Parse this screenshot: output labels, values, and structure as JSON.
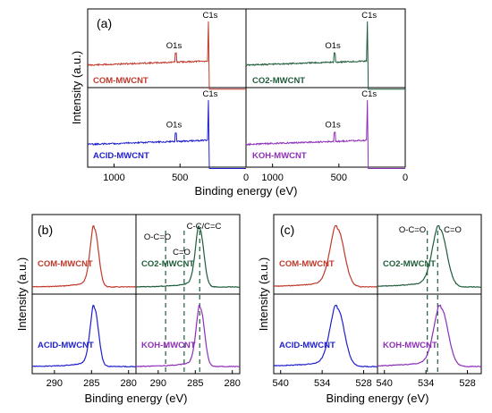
{
  "colors": {
    "COM": "#c0392b",
    "CO2": "#1f5c3a",
    "ACID": "#1f1fcf",
    "KOH": "#8e2fb8"
  },
  "chart_data": [
    {
      "type": "line",
      "panel_label": "(a)",
      "xlabel": "Binding energy (eV)",
      "ylabel": "Intensity (a.u.)",
      "xlim_left": [
        1200,
        0
      ],
      "xlim_right": [
        1200,
        0
      ],
      "x_ticks_left": [
        "1000",
        "500",
        "0"
      ],
      "x_ticks_right": [
        "1000",
        "500",
        "0"
      ],
      "peaks": {
        "O1s": 532,
        "C1s": 285
      },
      "series": [
        {
          "name": "COM-MWCNT",
          "color": "COM",
          "row": "top",
          "col": "left",
          "peak_labels": [
            "O1s",
            "C1s"
          ]
        },
        {
          "name": "CO2-MWCNT",
          "color": "CO2",
          "row": "top",
          "col": "right",
          "peak_labels": [
            "O1s",
            "C1s"
          ]
        },
        {
          "name": "ACID-MWCNT",
          "color": "ACID",
          "row": "bottom",
          "col": "left",
          "peak_labels": [
            "O1s",
            "C1s"
          ]
        },
        {
          "name": "KOH-MWCNT",
          "color": "KOH",
          "row": "bottom",
          "col": "right",
          "peak_labels": [
            "O1s",
            "C1s"
          ]
        }
      ]
    },
    {
      "type": "line",
      "panel_label": "(b)",
      "xlabel": "Binding energy (eV)",
      "ylabel": "Intensity (a.u.)",
      "xlim": [
        293,
        279
      ],
      "x_ticks": [
        "290",
        "285",
        "280"
      ],
      "reference_lines": [
        289,
        286.5,
        284.4
      ],
      "annotations": [
        "O-C=O",
        "C=O",
        "C-C/C=C"
      ],
      "series": [
        {
          "name": "COM-MWCNT",
          "color": "COM",
          "peak": 284.6
        },
        {
          "name": "CO2-MWCNT",
          "color": "CO2",
          "peak": 284.4
        },
        {
          "name": "ACID-MWCNT",
          "color": "ACID",
          "peak": 284.6
        },
        {
          "name": "KOH-MWCNT",
          "color": "KOH",
          "peak": 284.3
        }
      ]
    },
    {
      "type": "line",
      "panel_label": "(c)",
      "xlabel": "Binding energy (eV)",
      "ylabel": "Intensity (a.u.)",
      "xlim": [
        541,
        526
      ],
      "x_ticks": [
        "540",
        "534",
        "528"
      ],
      "reference_lines": [
        533.8,
        532.3
      ],
      "annotations": [
        "O-C=O",
        "C=O"
      ],
      "series": [
        {
          "name": "COM-MWCNT",
          "color": "COM",
          "peak": 531.8
        },
        {
          "name": "CO2-MWCNT",
          "color": "CO2",
          "peak": 532.0
        },
        {
          "name": "ACID-MWCNT",
          "color": "ACID",
          "peak": 531.8
        },
        {
          "name": "KOH-MWCNT",
          "color": "KOH",
          "peak": 531.8
        }
      ]
    }
  ]
}
